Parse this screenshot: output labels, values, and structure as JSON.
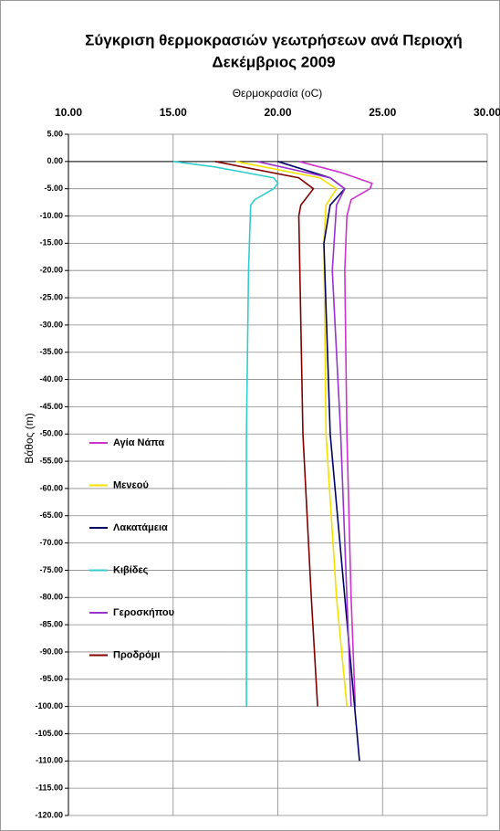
{
  "chart_data": {
    "type": "line",
    "title": "Σύγκριση θερμοκρασιών γεωτρήσεων ανά Περιοχή",
    "subtitle": "Δεκέμβριος 2009",
    "x_label": "Θερμοκρασία (oC)",
    "y_label": "Βάθος (m)",
    "xlim": [
      10,
      30
    ],
    "xticks": [
      {
        "value": 10,
        "label": "10.00"
      },
      {
        "value": 15,
        "label": "15.00"
      },
      {
        "value": 20,
        "label": "20.00"
      },
      {
        "value": 25,
        "label": "25.00"
      },
      {
        "value": 30,
        "label": "30.00"
      }
    ],
    "ylim": [
      -120,
      5
    ],
    "yticks": [
      {
        "value": 5,
        "label": "5.00"
      },
      {
        "value": 0,
        "label": "0.00"
      },
      {
        "value": -5,
        "label": "-5.00"
      },
      {
        "value": -10,
        "label": "-10.00"
      },
      {
        "value": -15,
        "label": "-15.00"
      },
      {
        "value": -20,
        "label": "-20.00"
      },
      {
        "value": -25,
        "label": "-25.00"
      },
      {
        "value": -30,
        "label": "-30.00"
      },
      {
        "value": -35,
        "label": "-35.00"
      },
      {
        "value": -40,
        "label": "-40.00"
      },
      {
        "value": -45,
        "label": "-45.00"
      },
      {
        "value": -50,
        "label": "-50.00"
      },
      {
        "value": -55,
        "label": "-55.00"
      },
      {
        "value": -60,
        "label": "-60.00"
      },
      {
        "value": -65,
        "label": "-65.00"
      },
      {
        "value": -70,
        "label": "-70.00"
      },
      {
        "value": -75,
        "label": "-75.00"
      },
      {
        "value": -80,
        "label": "-80.00"
      },
      {
        "value": -85,
        "label": "-85.00"
      },
      {
        "value": -90,
        "label": "-90.00"
      },
      {
        "value": -95,
        "label": "-95.00"
      },
      {
        "value": -100,
        "label": "-100.00"
      },
      {
        "value": -105,
        "label": "-105.00"
      },
      {
        "value": -110,
        "label": "-110.00"
      },
      {
        "value": -115,
        "label": "-115.00"
      },
      {
        "value": -120,
        "label": "-120.00"
      }
    ],
    "grid": true,
    "series": [
      {
        "name": "Αγία Νάπα",
        "color": "#cc33cc",
        "x": [
          21,
          23,
          24.5,
          24.4,
          23.5,
          23.3,
          23.2,
          23.3,
          23.5,
          23.7
        ],
        "y": [
          0,
          -2,
          -4,
          -5,
          -7,
          -10,
          -20,
          -50,
          -80,
          -100
        ]
      },
      {
        "name": "Μενεού",
        "color": "#f5e000",
        "x": [
          18,
          22,
          22.8,
          22.3,
          22.2,
          22.3,
          22.8,
          23.3
        ],
        "y": [
          0,
          -3,
          -5,
          -8,
          -15,
          -50,
          -80,
          -100
        ]
      },
      {
        "name": "Λακατάμεια",
        "color": "#000066",
        "x": [
          20,
          22.5,
          23.2,
          22.5,
          22.2,
          22.5,
          23.2,
          23.9
        ],
        "y": [
          0,
          -3,
          -5,
          -8,
          -15,
          -50,
          -80,
          -110
        ]
      },
      {
        "name": "Κιβίδες",
        "color": "#33cccc",
        "x": [
          15,
          17,
          19.8,
          20,
          19.8,
          18.9,
          18.7,
          18.6,
          18.5,
          18.5
        ],
        "y": [
          0,
          -1,
          -3,
          -4,
          -5,
          -7,
          -8,
          -20,
          -50,
          -100
        ]
      },
      {
        "name": "Γεροσκήπου",
        "color": "#9933cc",
        "x": [
          19,
          22.5,
          23.2,
          22.8,
          22.6,
          23,
          23.3,
          23.5
        ],
        "y": [
          0,
          -3,
          -5,
          -8,
          -20,
          -50,
          -80,
          -100
        ]
      },
      {
        "name": "Προδρόμι",
        "color": "#800000",
        "x": [
          17,
          21,
          21.7,
          21.1,
          21,
          21.2,
          21.6,
          21.9
        ],
        "y": [
          0,
          -3,
          -5,
          -8,
          -10,
          -50,
          -80,
          -100
        ]
      }
    ]
  }
}
